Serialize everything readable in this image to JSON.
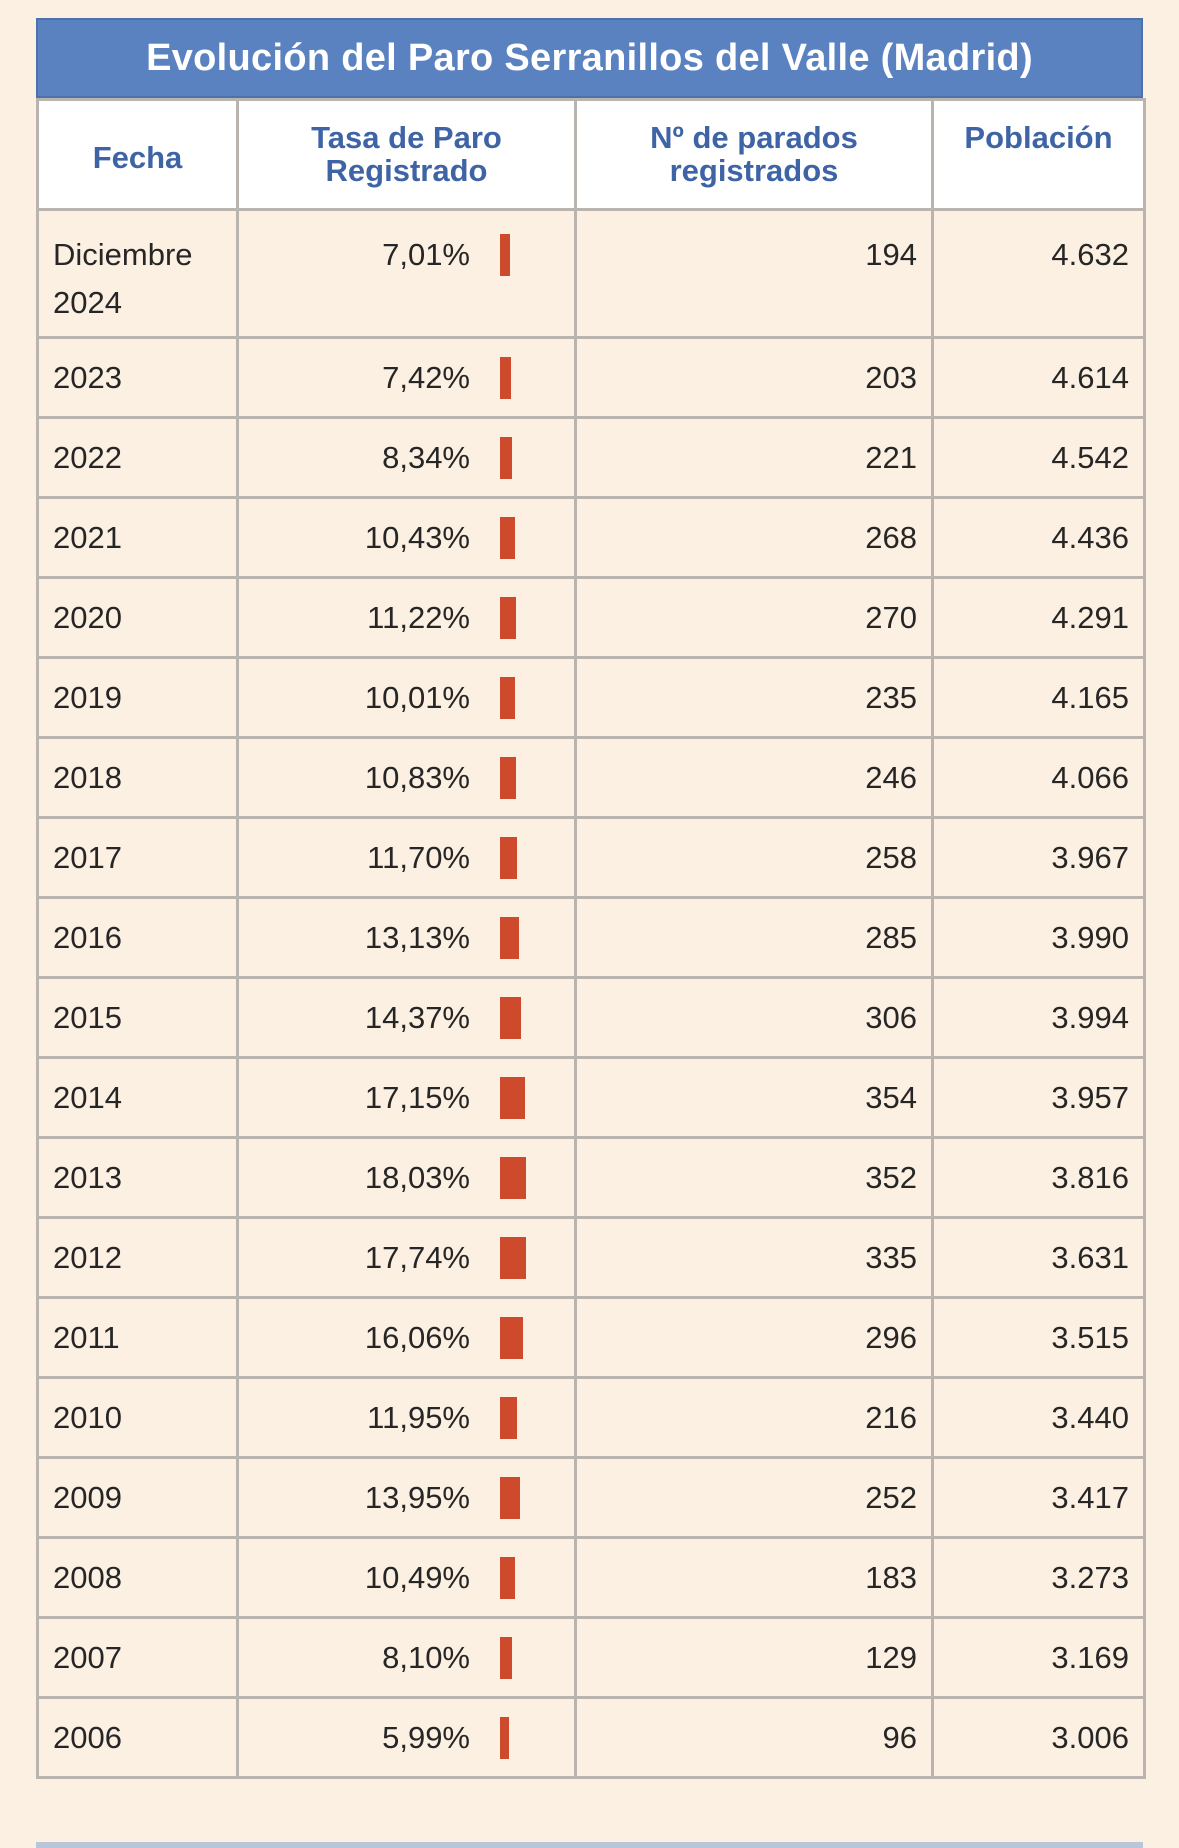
{
  "title": "Evolución del Paro Serranillos del Valle (Madrid)",
  "headers": {
    "fecha": "Fecha",
    "tasa": "Tasa de Paro Registrado",
    "parados": "Nº de parados registrados",
    "poblacion": "Población"
  },
  "colors": {
    "header_bg": "#5a81c0",
    "header_text": "#3f64a6",
    "bar": "#cd4a2c",
    "page_bg": "#fcf0e2"
  },
  "rows": [
    {
      "fecha": "Diciembre 2024",
      "tasa": "7,01%",
      "tasa_value": 7.01,
      "parados": "194",
      "poblacion": "4.632"
    },
    {
      "fecha": "2023",
      "tasa": "7,42%",
      "tasa_value": 7.42,
      "parados": "203",
      "poblacion": "4.614"
    },
    {
      "fecha": "2022",
      "tasa": "8,34%",
      "tasa_value": 8.34,
      "parados": "221",
      "poblacion": "4.542"
    },
    {
      "fecha": "2021",
      "tasa": "10,43%",
      "tasa_value": 10.43,
      "parados": "268",
      "poblacion": "4.436"
    },
    {
      "fecha": "2020",
      "tasa": "11,22%",
      "tasa_value": 11.22,
      "parados": "270",
      "poblacion": "4.291"
    },
    {
      "fecha": "2019",
      "tasa": "10,01%",
      "tasa_value": 10.01,
      "parados": "235",
      "poblacion": "4.165"
    },
    {
      "fecha": "2018",
      "tasa": "10,83%",
      "tasa_value": 10.83,
      "parados": "246",
      "poblacion": "4.066"
    },
    {
      "fecha": "2017",
      "tasa": "11,70%",
      "tasa_value": 11.7,
      "parados": "258",
      "poblacion": "3.967"
    },
    {
      "fecha": "2016",
      "tasa": "13,13%",
      "tasa_value": 13.13,
      "parados": "285",
      "poblacion": "3.990"
    },
    {
      "fecha": "2015",
      "tasa": "14,37%",
      "tasa_value": 14.37,
      "parados": "306",
      "poblacion": "3.994"
    },
    {
      "fecha": "2014",
      "tasa": "17,15%",
      "tasa_value": 17.15,
      "parados": "354",
      "poblacion": "3.957"
    },
    {
      "fecha": "2013",
      "tasa": "18,03%",
      "tasa_value": 18.03,
      "parados": "352",
      "poblacion": "3.816"
    },
    {
      "fecha": "2012",
      "tasa": "17,74%",
      "tasa_value": 17.74,
      "parados": "335",
      "poblacion": "3.631"
    },
    {
      "fecha": "2011",
      "tasa": "16,06%",
      "tasa_value": 16.06,
      "parados": "296",
      "poblacion": "3.515"
    },
    {
      "fecha": "2010",
      "tasa": "11,95%",
      "tasa_value": 11.95,
      "parados": "216",
      "poblacion": "3.440"
    },
    {
      "fecha": "2009",
      "tasa": "13,95%",
      "tasa_value": 13.95,
      "parados": "252",
      "poblacion": "3.417"
    },
    {
      "fecha": "2008",
      "tasa": "10,49%",
      "tasa_value": 10.49,
      "parados": "183",
      "poblacion": "3.273"
    },
    {
      "fecha": "2007",
      "tasa": "8,10%",
      "tasa_value": 8.1,
      "parados": "129",
      "poblacion": "3.169"
    },
    {
      "fecha": "2006",
      "tasa": "5,99%",
      "tasa_value": 5.99,
      "parados": "96",
      "poblacion": "3.006"
    }
  ]
}
